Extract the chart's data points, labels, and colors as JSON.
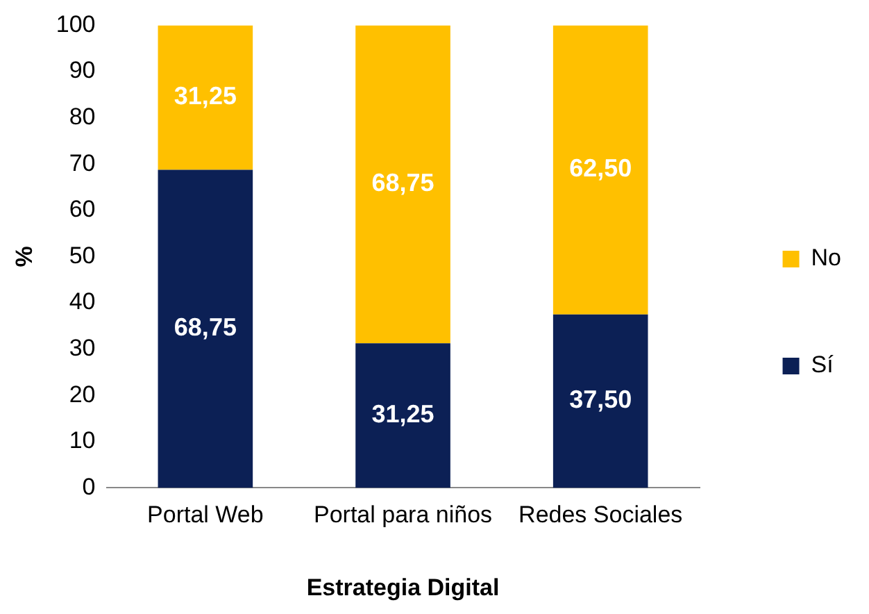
{
  "chart_data": {
    "type": "bar",
    "stacked": true,
    "xlabel": "Estrategia Digital",
    "ylabel": "%",
    "categories": [
      "Portal Web",
      "Portal para niños",
      "Redes Sociales"
    ],
    "ylim": [
      0,
      100
    ],
    "yticks": [
      0,
      10,
      20,
      30,
      40,
      50,
      60,
      70,
      80,
      90,
      100
    ],
    "grid": false,
    "legend": "right",
    "series": [
      {
        "name": "Sí",
        "color": "#0c2055",
        "values": [
          68.75,
          31.25,
          37.5
        ],
        "value_labels": [
          "68,75",
          "31,25",
          "37,50"
        ]
      },
      {
        "name": "No",
        "color": "#ffc000",
        "values": [
          31.25,
          68.75,
          62.5
        ],
        "value_labels": [
          "31,25",
          "68,75",
          "62,50"
        ]
      }
    ]
  }
}
